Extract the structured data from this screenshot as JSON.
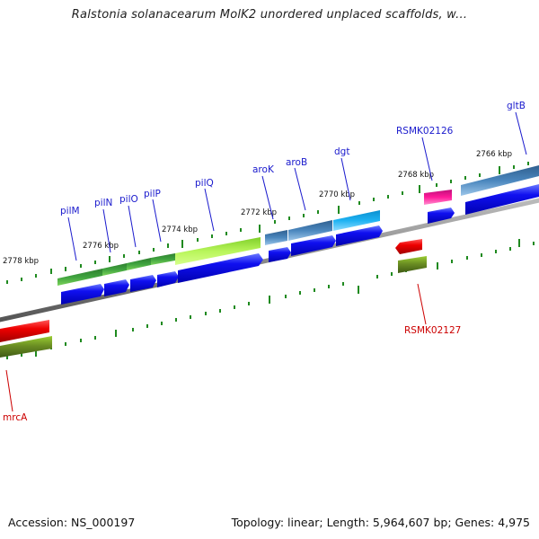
{
  "header": {
    "title": "Ralstonia solanacearum MolK2 unordered unplaced scaffolds, w..."
  },
  "footer": {
    "accession": "Accession: NS_000197",
    "summary": "Topology: linear; Length: 5,964,607 bp; Genes: 4,975"
  },
  "scale_ticks": [
    "2778 kbp",
    "2776 kbp",
    "2774 kbp",
    "2772 kbp",
    "2770 kbp",
    "2768 kbp",
    "2766 kbp"
  ],
  "genes_top": [
    "pilM",
    "pilN",
    "pilO",
    "pilP",
    "pilQ",
    "aroK",
    "aroB",
    "dgt",
    "RSMK02126",
    "gltB"
  ],
  "genes_bottom": [
    "RSMK02127",
    "mrcA"
  ],
  "colors": {
    "top_gene_label": "#1a1acd",
    "bottom_gene_label": "#cc0000",
    "cds_arrow": "#0000e6",
    "tick": "#1f8a1f",
    "backbone": "#888888",
    "green_dark": "#2e8b2e",
    "green_light": "#a8f04c",
    "steelblue": "#4682b4",
    "deepskyblue": "#1ea6e8",
    "magenta": "#ff1493",
    "red": "#ee0000",
    "olive": "#6b8e23"
  }
}
